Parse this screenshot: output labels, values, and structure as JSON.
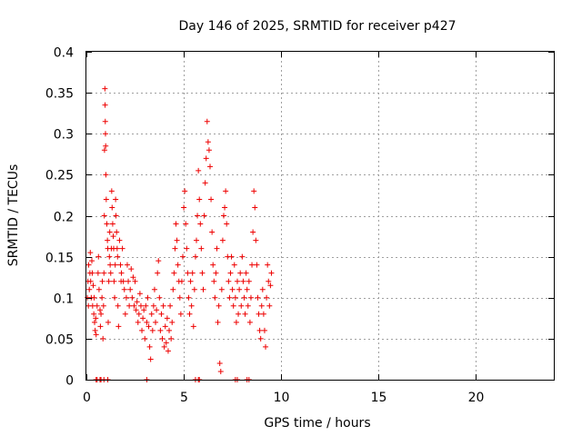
{
  "chart_data": {
    "type": "scatter",
    "title": "Day 146 of 2025, SRMTID for receiver p427",
    "xlabel": "GPS time / hours",
    "ylabel": "SRMTID / TECUs",
    "xlim": [
      0,
      24
    ],
    "ylim": [
      0,
      0.4
    ],
    "xticks": [
      0,
      5,
      10,
      15,
      20
    ],
    "xtick_labels": [
      "0",
      "5",
      "10",
      "15",
      "20"
    ],
    "yticks": [
      0,
      0.05,
      0.1,
      0.15,
      0.2,
      0.25,
      0.3,
      0.35,
      0.4
    ],
    "ytick_labels": [
      "0",
      "0.05",
      "0.1",
      "0.15",
      "0.2",
      "0.25",
      "0.3",
      "0.35",
      "0.4"
    ],
    "grid": true,
    "marker": "plus",
    "color": "#ee0000",
    "x_data_range": [
      0.0,
      9.5
    ],
    "series": [
      {
        "name": "SRMTID",
        "points": [
          [
            0.05,
            0.1
          ],
          [
            0.08,
            0.12
          ],
          [
            0.1,
            0.09
          ],
          [
            0.12,
            0.14
          ],
          [
            0.15,
            0.11
          ],
          [
            0.18,
            0.13
          ],
          [
            0.2,
            0.155
          ],
          [
            0.22,
            0.12
          ],
          [
            0.25,
            0.1
          ],
          [
            0.28,
            0.145
          ],
          [
            0.3,
            0.13
          ],
          [
            0.32,
            0.09
          ],
          [
            0.35,
            0.115
          ],
          [
            0.38,
            0.08
          ],
          [
            0.4,
            0.1
          ],
          [
            0.42,
            0.07
          ],
          [
            0.45,
            0.06
          ],
          [
            0.48,
            0.075
          ],
          [
            0.5,
            0.055
          ],
          [
            0.55,
            0.09
          ],
          [
            0.6,
            0.13
          ],
          [
            0.62,
            0.15
          ],
          [
            0.65,
            0.11
          ],
          [
            0.7,
            0.085
          ],
          [
            0.72,
            0.065
          ],
          [
            0.75,
            0.08
          ],
          [
            0.8,
            0.1
          ],
          [
            0.82,
            0.12
          ],
          [
            0.85,
            0.05
          ],
          [
            0.88,
            0.09
          ],
          [
            0.9,
            0.13
          ],
          [
            0.92,
            0.2
          ],
          [
            0.93,
            0.28
          ],
          [
            0.95,
            0.355
          ],
          [
            0.96,
            0.335
          ],
          [
            0.97,
            0.315
          ],
          [
            0.98,
            0.3
          ],
          [
            0.99,
            0.285
          ],
          [
            1.0,
            0.25
          ],
          [
            1.02,
            0.22
          ],
          [
            1.05,
            0.19
          ],
          [
            1.08,
            0.17
          ],
          [
            1.1,
            0.16
          ],
          [
            1.12,
            0.07
          ],
          [
            1.15,
            0.12
          ],
          [
            1.18,
            0.15
          ],
          [
            1.2,
            0.18
          ],
          [
            1.22,
            0.14
          ],
          [
            1.25,
            0.13
          ],
          [
            1.28,
            0.16
          ],
          [
            1.3,
            0.23
          ],
          [
            1.32,
            0.21
          ],
          [
            1.35,
            0.19
          ],
          [
            1.38,
            0.175
          ],
          [
            1.4,
            0.16
          ],
          [
            1.42,
            0.12
          ],
          [
            1.45,
            0.1
          ],
          [
            1.48,
            0.14
          ],
          [
            1.5,
            0.22
          ],
          [
            1.52,
            0.2
          ],
          [
            1.55,
            0.18
          ],
          [
            1.58,
            0.16
          ],
          [
            1.6,
            0.15
          ],
          [
            1.62,
            0.09
          ],
          [
            1.65,
            0.065
          ],
          [
            1.7,
            0.17
          ],
          [
            1.75,
            0.14
          ],
          [
            1.78,
            0.12
          ],
          [
            1.8,
            0.13
          ],
          [
            1.85,
            0.16
          ],
          [
            1.9,
            0.12
          ],
          [
            1.95,
            0.11
          ],
          [
            2.0,
            0.08
          ],
          [
            2.05,
            0.1
          ],
          [
            2.1,
            0.14
          ],
          [
            2.15,
            0.12
          ],
          [
            2.2,
            0.09
          ],
          [
            2.25,
            0.11
          ],
          [
            2.3,
            0.135
          ],
          [
            2.35,
            0.1
          ],
          [
            2.4,
            0.125
          ],
          [
            2.45,
            0.09
          ],
          [
            2.5,
            0.12
          ],
          [
            2.55,
            0.085
          ],
          [
            2.6,
            0.095
          ],
          [
            2.65,
            0.07
          ],
          [
            2.7,
            0.08
          ],
          [
            2.75,
            0.105
          ],
          [
            2.8,
            0.09
          ],
          [
            2.85,
            0.06
          ],
          [
            2.9,
            0.075
          ],
          [
            2.95,
            0.085
          ],
          [
            3.0,
            0.05
          ],
          [
            3.05,
            0.09
          ],
          [
            3.1,
            0.07
          ],
          [
            3.15,
            0.1
          ],
          [
            3.2,
            0.065
          ],
          [
            3.25,
            0.04
          ],
          [
            3.3,
            0.025
          ],
          [
            3.35,
            0.08
          ],
          [
            3.4,
            0.06
          ],
          [
            3.45,
            0.09
          ],
          [
            3.5,
            0.11
          ],
          [
            3.55,
            0.07
          ],
          [
            3.6,
            0.085
          ],
          [
            3.65,
            0.13
          ],
          [
            3.7,
            0.145
          ],
          [
            3.75,
            0.1
          ],
          [
            3.8,
            0.06
          ],
          [
            3.85,
            0.08
          ],
          [
            3.9,
            0.05
          ],
          [
            3.95,
            0.09
          ],
          [
            4.0,
            0.04
          ],
          [
            4.05,
            0.065
          ],
          [
            4.1,
            0.045
          ],
          [
            4.15,
            0.075
          ],
          [
            4.2,
            0.035
          ],
          [
            4.25,
            0.06
          ],
          [
            4.3,
            0.09
          ],
          [
            4.35,
            0.05
          ],
          [
            4.4,
            0.07
          ],
          [
            4.45,
            0.11
          ],
          [
            4.5,
            0.13
          ],
          [
            4.55,
            0.16
          ],
          [
            4.6,
            0.19
          ],
          [
            4.65,
            0.17
          ],
          [
            4.7,
            0.14
          ],
          [
            4.75,
            0.12
          ],
          [
            4.8,
            0.1
          ],
          [
            4.85,
            0.08
          ],
          [
            4.9,
            0.12
          ],
          [
            4.95,
            0.15
          ],
          [
            5.0,
            0.21
          ],
          [
            5.05,
            0.23
          ],
          [
            5.1,
            0.19
          ],
          [
            5.15,
            0.16
          ],
          [
            5.2,
            0.13
          ],
          [
            5.25,
            0.1
          ],
          [
            5.3,
            0.08
          ],
          [
            5.35,
            0.12
          ],
          [
            5.4,
            0.09
          ],
          [
            5.45,
            0.13
          ],
          [
            5.5,
            0.065
          ],
          [
            5.55,
            0.11
          ],
          [
            5.6,
            0.15
          ],
          [
            5.65,
            0.17
          ],
          [
            5.7,
            0.2
          ],
          [
            5.75,
            0.255
          ],
          [
            5.8,
            0.22
          ],
          [
            5.85,
            0.19
          ],
          [
            5.9,
            0.16
          ],
          [
            5.95,
            0.13
          ],
          [
            6.0,
            0.11
          ],
          [
            6.05,
            0.2
          ],
          [
            6.1,
            0.24
          ],
          [
            6.15,
            0.27
          ],
          [
            6.2,
            0.315
          ],
          [
            6.25,
            0.29
          ],
          [
            6.3,
            0.28
          ],
          [
            6.35,
            0.26
          ],
          [
            6.4,
            0.22
          ],
          [
            6.45,
            0.18
          ],
          [
            6.5,
            0.14
          ],
          [
            6.55,
            0.12
          ],
          [
            6.6,
            0.1
          ],
          [
            6.65,
            0.13
          ],
          [
            6.7,
            0.16
          ],
          [
            6.75,
            0.07
          ],
          [
            6.8,
            0.09
          ],
          [
            6.85,
            0.02
          ],
          [
            6.9,
            0.01
          ],
          [
            6.95,
            0.11
          ],
          [
            7.0,
            0.17
          ],
          [
            7.05,
            0.2
          ],
          [
            7.1,
            0.21
          ],
          [
            7.15,
            0.23
          ],
          [
            7.2,
            0.19
          ],
          [
            7.25,
            0.15
          ],
          [
            7.3,
            0.12
          ],
          [
            7.35,
            0.1
          ],
          [
            7.4,
            0.13
          ],
          [
            7.45,
            0.15
          ],
          [
            7.5,
            0.11
          ],
          [
            7.55,
            0.09
          ],
          [
            7.6,
            0.14
          ],
          [
            7.65,
            0.1
          ],
          [
            7.7,
            0.07
          ],
          [
            7.75,
            0.12
          ],
          [
            7.8,
            0.08
          ],
          [
            7.85,
            0.11
          ],
          [
            7.9,
            0.13
          ],
          [
            7.95,
            0.09
          ],
          [
            8.0,
            0.15
          ],
          [
            8.05,
            0.12
          ],
          [
            8.1,
            0.1
          ],
          [
            8.15,
            0.08
          ],
          [
            8.2,
            0.13
          ],
          [
            8.25,
            0.11
          ],
          [
            8.3,
            0.09
          ],
          [
            8.35,
            0.12
          ],
          [
            8.4,
            0.07
          ],
          [
            8.45,
            0.1
          ],
          [
            8.5,
            0.14
          ],
          [
            8.55,
            0.18
          ],
          [
            8.6,
            0.23
          ],
          [
            8.65,
            0.21
          ],
          [
            8.7,
            0.17
          ],
          [
            8.75,
            0.14
          ],
          [
            8.8,
            0.1
          ],
          [
            8.85,
            0.08
          ],
          [
            8.9,
            0.06
          ],
          [
            8.95,
            0.05
          ],
          [
            9.0,
            0.09
          ],
          [
            9.05,
            0.11
          ],
          [
            9.1,
            0.08
          ],
          [
            9.15,
            0.06
          ],
          [
            9.2,
            0.04
          ],
          [
            9.25,
            0.1
          ],
          [
            9.3,
            0.14
          ],
          [
            9.35,
            0.12
          ],
          [
            9.4,
            0.09
          ],
          [
            9.45,
            0.115
          ],
          [
            9.5,
            0.13
          ],
          [
            0.5,
            0.0
          ],
          [
            0.55,
            0.0
          ],
          [
            0.7,
            0.0
          ],
          [
            0.75,
            0.0
          ],
          [
            0.9,
            0.0
          ],
          [
            1.1,
            0.0
          ],
          [
            3.1,
            0.0
          ],
          [
            5.6,
            0.0
          ],
          [
            5.75,
            0.0
          ],
          [
            5.8,
            0.0
          ],
          [
            7.65,
            0.0
          ],
          [
            7.75,
            0.0
          ],
          [
            8.25,
            0.0
          ],
          [
            8.35,
            0.0
          ]
        ]
      }
    ]
  }
}
